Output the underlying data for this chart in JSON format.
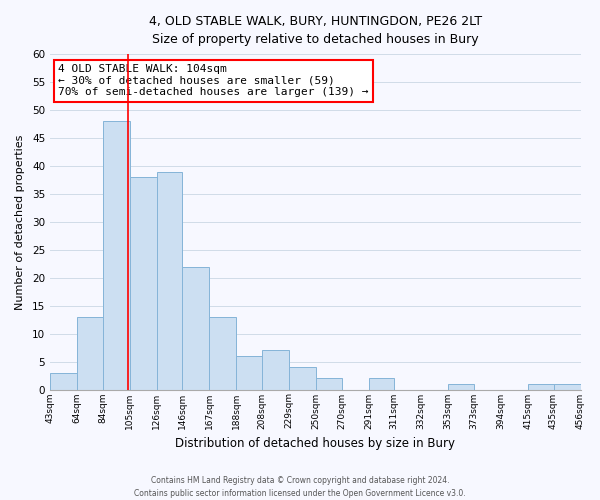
{
  "title_line1": "4, OLD STABLE WALK, BURY, HUNTINGDON, PE26 2LT",
  "title_line2": "Size of property relative to detached houses in Bury",
  "xlabel": "Distribution of detached houses by size in Bury",
  "ylabel": "Number of detached properties",
  "bar_edges": [
    43,
    64,
    84,
    105,
    126,
    146,
    167,
    188,
    208,
    229,
    250,
    270,
    291,
    311,
    332,
    353,
    373,
    394,
    415,
    435,
    456
  ],
  "bar_heights": [
    3,
    13,
    48,
    38,
    39,
    22,
    13,
    6,
    7,
    4,
    2,
    0,
    2,
    0,
    0,
    1,
    0,
    0,
    1,
    1
  ],
  "bar_color": "#ccdff2",
  "bar_edge_color": "#85b4d8",
  "tick_labels": [
    "43sqm",
    "64sqm",
    "84sqm",
    "105sqm",
    "126sqm",
    "146sqm",
    "167sqm",
    "188sqm",
    "208sqm",
    "229sqm",
    "250sqm",
    "270sqm",
    "291sqm",
    "311sqm",
    "332sqm",
    "353sqm",
    "373sqm",
    "394sqm",
    "415sqm",
    "435sqm",
    "456sqm"
  ],
  "ylim": [
    0,
    60
  ],
  "yticks": [
    0,
    5,
    10,
    15,
    20,
    25,
    30,
    35,
    40,
    45,
    50,
    55,
    60
  ],
  "property_line_x": 104,
  "annotation_line1": "4 OLD STABLE WALK: 104sqm",
  "annotation_line2": "← 30% of detached houses are smaller (59)",
  "annotation_line3": "70% of semi-detached houses are larger (139) →",
  "grid_color": "#d0dce8",
  "background_color": "#f7f8ff",
  "footer_line1": "Contains HM Land Registry data © Crown copyright and database right 2024.",
  "footer_line2": "Contains public sector information licensed under the Open Government Licence v3.0."
}
